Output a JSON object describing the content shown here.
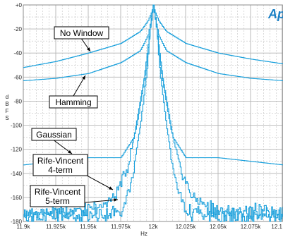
{
  "chart_data": {
    "type": "line",
    "title": "",
    "xlabel": "Hz",
    "ylabel": "d B F S",
    "xlim": [
      11900,
      12100
    ],
    "ylim": [
      -180,
      0
    ],
    "x_tick_labels": [
      "11.9k",
      "11.925k",
      "11.95k",
      "11.975k",
      "12k",
      "12.025k",
      "12.05k",
      "12.075k",
      "12.1"
    ],
    "y_tick_labels": [
      "+0",
      "-20",
      "-40",
      "-60",
      "-80",
      "-100",
      "-120",
      "-140",
      "-160",
      "-180"
    ],
    "grid": true,
    "logo_text": "Ap",
    "colors": {
      "trace": "#1aa0dc",
      "grid": "#b4b4b4",
      "background": "#ffffff",
      "logo": "#1a7fc4"
    },
    "annotations": [
      {
        "label": "No Window",
        "lines": [
          "No Window"
        ]
      },
      {
        "label": "Hamming",
        "lines": [
          "Hamming"
        ]
      },
      {
        "label": "Gaussian",
        "lines": [
          "Gaussian"
        ]
      },
      {
        "label": "Rife-Vincent 4-term",
        "lines": [
          "Rife-Vincent",
          "4-term"
        ]
      },
      {
        "label": "Rife-Vincent 5-term",
        "lines": [
          "Rife-Vincent",
          "5-term"
        ]
      }
    ],
    "series": [
      {
        "key": "no_window",
        "x": [
          11900,
          11925,
          11950,
          11975,
          11990,
          11996,
          11999,
          12000,
          12001,
          12004,
          12010,
          12025,
          12050,
          12075,
          12100
        ],
        "y": [
          -52,
          -47,
          -40,
          -32,
          -22,
          -13,
          -5,
          0,
          -5,
          -13,
          -22,
          -32,
          -40,
          -45,
          -49
        ]
      },
      {
        "key": "hamming",
        "x": [
          11900,
          11925,
          11950,
          11975,
          11990,
          11996,
          11999,
          12000,
          12001,
          12004,
          12010,
          12025,
          12050,
          12075,
          12100
        ],
        "y": [
          -63,
          -61,
          -57,
          -48,
          -38,
          -25,
          -8,
          0,
          -8,
          -25,
          -38,
          -48,
          -57,
          -61,
          -63
        ]
      },
      {
        "key": "gaussian",
        "x": [
          11900,
          11925,
          11950,
          11975,
          11985,
          11993,
          11998,
          12000,
          12002,
          12007,
          12015,
          12025,
          12050,
          12075,
          12100
        ],
        "y": [
          -133,
          -130,
          -127,
          -127,
          -110,
          -60,
          -15,
          0,
          -15,
          -60,
          -110,
          -127,
          -127,
          -130,
          -133
        ]
      },
      {
        "key": "rife_vincent_4",
        "x": [
          11900,
          11950,
          11970,
          11980,
          11988,
          11994,
          11998,
          12000,
          12002,
          12006,
          12012,
          12020,
          12030,
          12050,
          12100
        ],
        "y": [
          -173,
          -172,
          -160,
          -135,
          -95,
          -55,
          -15,
          0,
          -15,
          -55,
          -95,
          -135,
          -160,
          -172,
          -173
        ]
      },
      {
        "key": "rife_vincent_5",
        "x": [
          11900,
          11950,
          11975,
          11983,
          11990,
          11995,
          11998,
          12000,
          12002,
          12005,
          12010,
          12017,
          12025,
          12050,
          12100
        ],
        "y": [
          -175,
          -176,
          -172,
          -148,
          -100,
          -55,
          -12,
          0,
          -12,
          -55,
          -100,
          -148,
          -172,
          -176,
          -175
        ]
      }
    ]
  }
}
